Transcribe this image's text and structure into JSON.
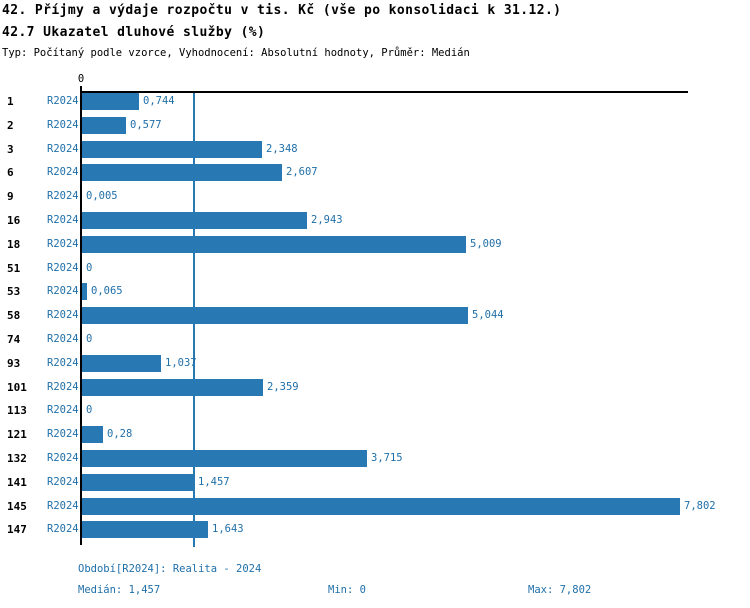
{
  "header": {
    "title_line1": "42. Příjmy a výdaje rozpočtu v tis. Kč (vše po konsolidaci k 31.12.)",
    "title_line2": "42.7 Ukazatel dluhové služby (%)",
    "meta_line": "Typ: Počítaný podle vzorce, Vyhodnocení: Absolutní hodnoty, Průměr: Medián"
  },
  "chart_data": {
    "type": "bar",
    "orientation": "horizontal",
    "title": "42.7 Ukazatel dluhové služby (%)",
    "categories": [
      "1",
      "2",
      "3",
      "6",
      "9",
      "16",
      "18",
      "51",
      "53",
      "58",
      "74",
      "93",
      "101",
      "113",
      "121",
      "132",
      "141",
      "145",
      "147"
    ],
    "series": [
      {
        "name": "R2024",
        "values": [
          0.744,
          0.577,
          2.348,
          2.607,
          0.005,
          2.943,
          5.009,
          0,
          0.065,
          5.044,
          0,
          1.037,
          2.359,
          0,
          0.28,
          3.715,
          1.457,
          7.802,
          1.643
        ],
        "value_labels": [
          "0,744",
          "0,577",
          "2,348",
          "2,607",
          "0,005",
          "2,943",
          "5,009",
          "0",
          "0,065",
          "5,044",
          "0",
          "1,037",
          "2,359",
          "0",
          "0,28",
          "3,715",
          "1,457",
          "7,802",
          "1,643"
        ]
      }
    ],
    "series_row_label": "R2024",
    "axis_zero_label": "0",
    "xlim": [
      0,
      7.9
    ],
    "median_value": 1.457,
    "min_value": 0,
    "max_value": 7.802,
    "grid": false,
    "legend_position": "none",
    "bar_color": "#2878b4",
    "median_line_color": "#2878b4",
    "value_text_color": "#1f6fa9"
  },
  "footer": {
    "period_label": "Období[R2024]: Realita - 2024",
    "median_label": "Medián: 1,457",
    "min_label": "Min: 0",
    "max_label": "Max: 7,802"
  },
  "colors": {
    "accent_blue": "#2878b4",
    "text_blue": "#1f6fa9",
    "axis_black": "#000000",
    "background": "#ffffff"
  }
}
